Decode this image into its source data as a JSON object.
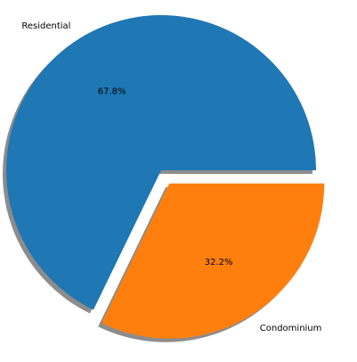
{
  "chart_data": {
    "type": "pie",
    "title": "",
    "slices": [
      {
        "label": "Residential",
        "value": 67.8,
        "pct_label": "67.8%",
        "color": "#1f77b4",
        "explode": 0.0
      },
      {
        "label": "Condominium",
        "value": 32.2,
        "pct_label": "32.2%",
        "color": "#ff7f0e",
        "explode": 0.1
      }
    ],
    "shadow": true,
    "start_angle": 0,
    "counterclock": true
  }
}
